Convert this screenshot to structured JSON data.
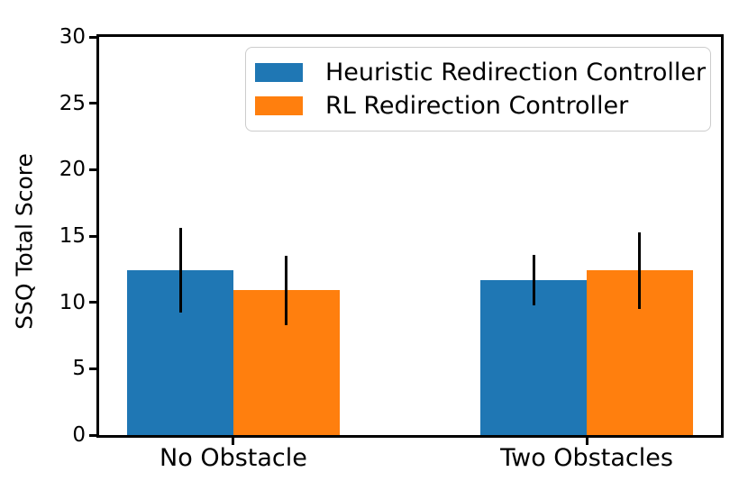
{
  "chart_data": {
    "type": "bar",
    "title": "",
    "xlabel": "",
    "ylabel": "SSQ Total Score",
    "categories": [
      "No Obstacle",
      "Two Obstacles"
    ],
    "series": [
      {
        "name": "Heuristic Redirection Controller",
        "color": "#1f77b4",
        "values": [
          12.4,
          11.7
        ],
        "errors": [
          3.2,
          1.9
        ]
      },
      {
        "name": "RL Redirection Controller",
        "color": "#ff7f0e",
        "values": [
          10.9,
          12.4
        ],
        "errors": [
          2.6,
          2.9
        ]
      }
    ],
    "ylim": [
      0,
      30
    ],
    "yticks": [
      0,
      5,
      10,
      15,
      20,
      25,
      30
    ],
    "grid": false,
    "legend_position": "upper right",
    "error_bar_color": "#000000",
    "axis_color": "#000000",
    "background_color": "#ffffff"
  }
}
